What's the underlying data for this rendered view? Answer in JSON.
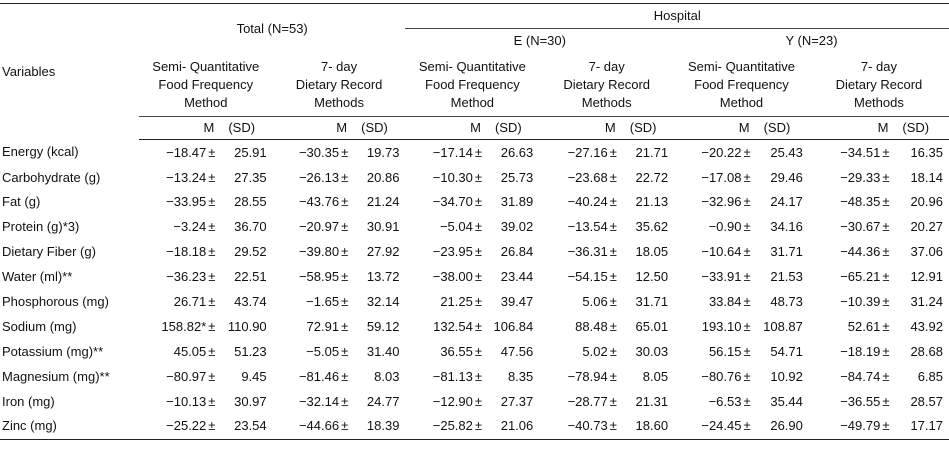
{
  "header": {
    "variables": "Variables",
    "total": "Total (N=53)",
    "hospital": "Hospital",
    "hospital_e": "E (N=30)",
    "hospital_y": "Y (N=23)",
    "sqffm": [
      "Semi- Quantitative",
      "Food Frequency",
      "Method"
    ],
    "ddrm": [
      "7- day",
      "Dietary Record",
      "Methods"
    ],
    "m": "M",
    "sd": "(SD)"
  },
  "pm": "±",
  "rows": [
    {
      "label": "Energy (kcal)",
      "v": [
        [
          "−18.47",
          "25.91"
        ],
        [
          "−30.35",
          "19.73"
        ],
        [
          "−17.14",
          "26.63"
        ],
        [
          "−27.16",
          "21.71"
        ],
        [
          "−20.22",
          "25.43"
        ],
        [
          "−34.51",
          "16.35"
        ]
      ]
    },
    {
      "label": "Carbohydrate (g)",
      "v": [
        [
          "−13.24",
          "27.35"
        ],
        [
          "−26.13",
          "20.86"
        ],
        [
          "−10.30",
          "25.73"
        ],
        [
          "−23.68",
          "22.72"
        ],
        [
          "−17.08",
          "29.46"
        ],
        [
          "−29.33",
          "18.14"
        ]
      ]
    },
    {
      "label": "Fat (g)",
      "v": [
        [
          "−33.95",
          "28.55"
        ],
        [
          "−43.76",
          "21.24"
        ],
        [
          "−34.70",
          "31.89"
        ],
        [
          "−40.24",
          "21.13"
        ],
        [
          "−32.96",
          "24.17"
        ],
        [
          "−48.35",
          "20.96"
        ]
      ]
    },
    {
      "label": "Protein (g)*3)",
      "v": [
        [
          "−3.24",
          "36.70"
        ],
        [
          "−20.97",
          "30.91"
        ],
        [
          "−5.04",
          "39.02"
        ],
        [
          "−13.54",
          "35.62"
        ],
        [
          "−0.90",
          "34.16"
        ],
        [
          "−30.67",
          "20.27"
        ]
      ]
    },
    {
      "label": "Dietary Fiber (g)",
      "v": [
        [
          "−18.18",
          "29.52"
        ],
        [
          "−39.80",
          "27.92"
        ],
        [
          "−23.95",
          "26.84"
        ],
        [
          "−36.31",
          "18.05"
        ],
        [
          "−10.64",
          "31.71"
        ],
        [
          "−44.36",
          "37.06"
        ]
      ]
    },
    {
      "label": "Water (ml)**",
      "v": [
        [
          "−36.23",
          "22.51"
        ],
        [
          "−58.95",
          "13.72"
        ],
        [
          "−38.00",
          "23.44"
        ],
        [
          "−54.15",
          "12.50"
        ],
        [
          "−33.91",
          "21.53"
        ],
        [
          "−65.21",
          "12.91"
        ]
      ]
    },
    {
      "label": "Phosphorous (mg)",
      "v": [
        [
          "26.71",
          "43.74"
        ],
        [
          "−1.65",
          "32.14"
        ],
        [
          "21.25",
          "39.47"
        ],
        [
          "5.06",
          "31.71"
        ],
        [
          "33.84",
          "48.73"
        ],
        [
          "−10.39",
          "31.24"
        ]
      ]
    },
    {
      "label": "Sodium (mg)",
      "v": [
        [
          "158.82*",
          "110.90"
        ],
        [
          "72.91",
          "59.12"
        ],
        [
          "132.54",
          "106.84"
        ],
        [
          "88.48",
          "65.01"
        ],
        [
          "193.10",
          "108.87"
        ],
        [
          "52.61",
          "43.92"
        ]
      ]
    },
    {
      "label": "Potassium (mg)**",
      "v": [
        [
          "45.05",
          "51.23"
        ],
        [
          "−5.05",
          "31.40"
        ],
        [
          "36.55",
          "47.56"
        ],
        [
          "5.02",
          "30.03"
        ],
        [
          "56.15",
          "54.71"
        ],
        [
          "−18.19",
          "28.68"
        ]
      ]
    },
    {
      "label": "Magnesium (mg)**",
      "v": [
        [
          "−80.97",
          "9.45"
        ],
        [
          "−81.46",
          "8.03"
        ],
        [
          "−81.13",
          "8.35"
        ],
        [
          "−78.94",
          "8.05"
        ],
        [
          "−80.76",
          "10.92"
        ],
        [
          "−84.74",
          "6.85"
        ]
      ]
    },
    {
      "label": "Iron (mg)",
      "v": [
        [
          "−10.13",
          "30.97"
        ],
        [
          "−32.14",
          "24.77"
        ],
        [
          "−12.90",
          "27.37"
        ],
        [
          "−28.77",
          "21.31"
        ],
        [
          "−6.53",
          "35.44"
        ],
        [
          "−36.55",
          "28.57"
        ]
      ]
    },
    {
      "label": "Zinc (mg)",
      "v": [
        [
          "−25.22",
          "23.54"
        ],
        [
          "−44.66",
          "18.39"
        ],
        [
          "−25.82",
          "21.06"
        ],
        [
          "−40.73",
          "18.60"
        ],
        [
          "−24.45",
          "26.90"
        ],
        [
          "−49.79",
          "17.17"
        ]
      ]
    }
  ]
}
